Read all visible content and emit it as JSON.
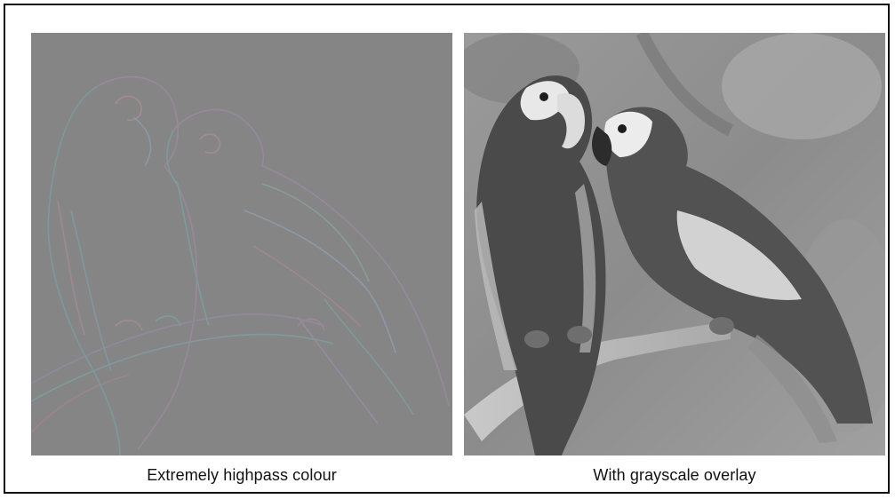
{
  "figure": {
    "left_panel": {
      "caption": "Extremely highpass colour",
      "subject": "two macaws on a branch (highpass edge image)"
    },
    "right_panel": {
      "caption": "With grayscale overlay",
      "subject": "two macaws on a branch (grayscale photo)"
    }
  }
}
